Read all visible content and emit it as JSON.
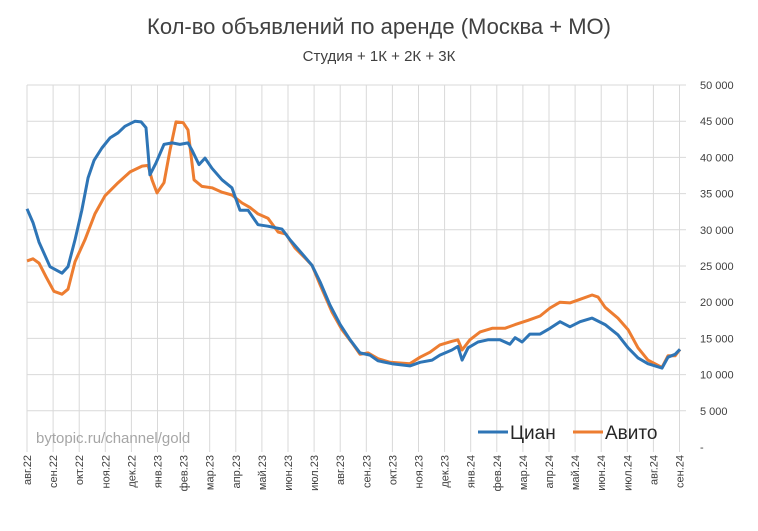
{
  "chart_data": {
    "type": "line",
    "title": "Кол-во объявлений по аренде (Москва + МО)",
    "subtitle": "Студия + 1К + 2К + 3К",
    "watermark": "bytopic.ru/channel/gold",
    "xlabel": "",
    "ylabel": "",
    "ylim": [
      0,
      50000
    ],
    "y_ticks": [
      0,
      5000,
      10000,
      15000,
      20000,
      25000,
      30000,
      35000,
      40000,
      45000,
      50000
    ],
    "y_tick_labels": [
      "-",
      "5 000",
      "10 000",
      "15 000",
      "20 000",
      "25 000",
      "30 000",
      "35 000",
      "40 000",
      "45 000",
      "50 000"
    ],
    "x_unit": "months since авг.22",
    "categories": [
      "авг.22",
      "сен.22",
      "окт.22",
      "ноя.22",
      "дек.22",
      "янв.23",
      "фев.23",
      "мар.23",
      "апр.23",
      "май.23",
      "июн.23",
      "июл.23",
      "авг.23",
      "сен.23",
      "окт.23",
      "ноя.23",
      "дек.23",
      "янв.24",
      "фев.24",
      "мар.24",
      "апр.24",
      "май.24",
      "июн.24",
      "июл.24",
      "авг.24",
      "сен.24"
    ],
    "grid": true,
    "legend_position": "bottom-right",
    "series": [
      {
        "name": "Циан",
        "color": "#2e75b6",
        "x": [
          0,
          0.23,
          0.46,
          0.88,
          1.34,
          1.57,
          1.84,
          2.1,
          2.34,
          2.57,
          2.87,
          3.18,
          3.49,
          3.75,
          4.14,
          4.37,
          4.56,
          4.71,
          4.94,
          5.25,
          5.56,
          5.86,
          6.17,
          6.32,
          6.59,
          6.82,
          7.09,
          7.47,
          7.85,
          8.16,
          8.47,
          8.85,
          9.23,
          9.77,
          10.08,
          10.54,
          10.92,
          11.23,
          11.61,
          12.0,
          12.38,
          12.76,
          13.14,
          13.45,
          13.98,
          14.67,
          15.06,
          15.52,
          15.82,
          16.28,
          16.51,
          16.67,
          16.9,
          17.28,
          17.66,
          18.12,
          18.5,
          18.7,
          18.97,
          19.27,
          19.66,
          20.04,
          20.42,
          20.8,
          21.19,
          21.65,
          22.15,
          22.64,
          23.03,
          23.41,
          23.79,
          24.33,
          24.56,
          24.83,
          25.02
        ],
        "y": [
          32900,
          31000,
          28300,
          24900,
          24000,
          24900,
          28600,
          32700,
          37200,
          39600,
          41300,
          42700,
          43400,
          44300,
          45000,
          44900,
          44100,
          37600,
          39200,
          41800,
          42000,
          41800,
          42000,
          41000,
          39000,
          39900,
          38500,
          36900,
          35800,
          32700,
          32700,
          30700,
          30500,
          30100,
          28600,
          26700,
          25100,
          22800,
          19600,
          16900,
          14800,
          13000,
          12700,
          11900,
          11500,
          11200,
          11700,
          12000,
          12700,
          13400,
          13900,
          12000,
          13700,
          14500,
          14800,
          14800,
          14200,
          15100,
          14500,
          15600,
          15600,
          16400,
          17300,
          16600,
          17300,
          17800,
          16900,
          15500,
          13700,
          12300,
          11500,
          10900,
          12400,
          12800,
          13500
        ]
      },
      {
        "name": "Авито",
        "color": "#ed7d31",
        "x": [
          0,
          0.23,
          0.46,
          0.73,
          1.03,
          1.34,
          1.57,
          1.84,
          2.22,
          2.6,
          2.99,
          3.49,
          3.95,
          4.41,
          4.64,
          4.79,
          4.98,
          5.25,
          5.48,
          5.71,
          5.98,
          6.17,
          6.4,
          6.7,
          7.09,
          7.47,
          7.85,
          8.24,
          8.54,
          8.85,
          9.23,
          9.62,
          9.92,
          10.27,
          10.65,
          10.92,
          11.23,
          11.69,
          12.07,
          12.45,
          12.76,
          13.07,
          13.45,
          13.91,
          14.67,
          15.06,
          15.44,
          15.82,
          16.28,
          16.51,
          16.67,
          16.97,
          17.36,
          17.82,
          18.31,
          18.7,
          19.2,
          19.66,
          20.04,
          20.42,
          20.8,
          21.19,
          21.65,
          21.88,
          22.15,
          22.64,
          23.03,
          23.41,
          23.79,
          24.33,
          24.56,
          24.83,
          25.02
        ],
        "y": [
          25700,
          26000,
          25400,
          23500,
          21500,
          21100,
          21800,
          25600,
          28600,
          32200,
          34700,
          36500,
          38000,
          38800,
          38900,
          36900,
          35100,
          36500,
          41000,
          44900,
          44800,
          43800,
          36900,
          36000,
          35800,
          35200,
          34800,
          33700,
          33100,
          32200,
          31600,
          29700,
          29400,
          27500,
          26100,
          25100,
          22400,
          18600,
          16200,
          14400,
          12800,
          13000,
          12200,
          11700,
          11500,
          12400,
          13100,
          14100,
          14600,
          14800,
          13400,
          14800,
          15900,
          16400,
          16400,
          16900,
          17500,
          18100,
          19200,
          20000,
          19900,
          20400,
          21000,
          20700,
          19300,
          17800,
          16200,
          13700,
          12000,
          11000,
          12600,
          12600,
          13500
        ]
      }
    ]
  }
}
